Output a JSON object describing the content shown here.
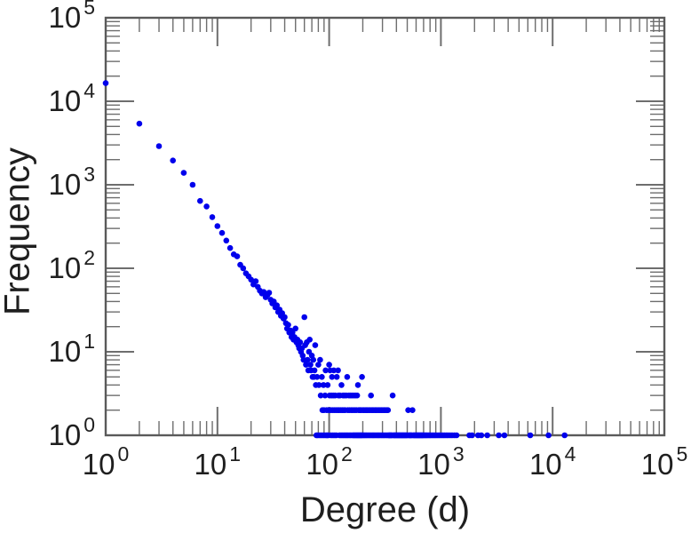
{
  "figure": {
    "background": "#ffffff"
  },
  "chart_data": {
    "type": "scatter",
    "title": "",
    "xlabel": "Degree (d)",
    "ylabel": "Frequency",
    "x_scale": "log",
    "y_scale": "log",
    "xlim": [
      1,
      100000
    ],
    "ylim": [
      1,
      100000
    ],
    "grid": false,
    "legend": null,
    "frame": "box-with-inward-ticks-all-sides",
    "x_ticks": [
      {
        "value": 1,
        "base": "10",
        "exp": "0"
      },
      {
        "value": 10,
        "base": "10",
        "exp": "1"
      },
      {
        "value": 100,
        "base": "10",
        "exp": "2"
      },
      {
        "value": 1000,
        "base": "10",
        "exp": "3"
      },
      {
        "value": 10000,
        "base": "10",
        "exp": "4"
      },
      {
        "value": 100000,
        "base": "10",
        "exp": "5"
      }
    ],
    "y_ticks": [
      {
        "value": 1,
        "base": "10",
        "exp": "0"
      },
      {
        "value": 10,
        "base": "10",
        "exp": "1"
      },
      {
        "value": 100,
        "base": "10",
        "exp": "2"
      },
      {
        "value": 1000,
        "base": "10",
        "exp": "3"
      },
      {
        "value": 10000,
        "base": "10",
        "exp": "4"
      },
      {
        "value": 100000,
        "base": "10",
        "exp": "5"
      }
    ],
    "marker": {
      "shape": "circle",
      "radius_px": 3.3,
      "color": "#0000ec"
    },
    "axis_color": "#5a5a5a",
    "tick_color": "#6e6e6e",
    "text_color": "#1f1f1f",
    "points": [
      [
        1,
        16500
      ],
      [
        2,
        5400
      ],
      [
        3,
        2900
      ],
      [
        4,
        1950
      ],
      [
        5,
        1390
      ],
      [
        6,
        1000
      ],
      [
        7,
        640
      ],
      [
        8,
        550
      ],
      [
        9,
        410
      ],
      [
        10,
        320
      ],
      [
        11,
        265
      ],
      [
        12,
        215
      ],
      [
        13,
        175
      ],
      [
        14,
        147
      ],
      [
        15,
        139
      ],
      [
        16,
        110
      ],
      [
        17,
        100
      ],
      [
        18,
        87
      ],
      [
        19,
        80
      ],
      [
        20,
        73
      ],
      [
        21,
        64
      ],
      [
        22,
        70
      ],
      [
        23,
        60
      ],
      [
        24,
        54
      ],
      [
        25,
        50
      ],
      [
        26,
        52
      ],
      [
        27,
        45
      ],
      [
        28,
        48
      ],
      [
        29,
        51
      ],
      [
        30,
        42
      ],
      [
        31,
        38
      ],
      [
        32,
        40
      ],
      [
        33,
        34
      ],
      [
        34,
        36
      ],
      [
        35,
        30
      ],
      [
        36,
        32
      ],
      [
        37,
        27
      ],
      [
        38,
        29
      ],
      [
        39,
        25
      ],
      [
        40,
        26
      ],
      [
        41,
        22
      ],
      [
        42,
        19
      ],
      [
        43,
        21
      ],
      [
        44,
        17
      ],
      [
        45,
        18
      ],
      [
        46,
        15
      ],
      [
        47,
        17
      ],
      [
        48,
        14
      ],
      [
        49,
        15
      ],
      [
        50,
        19
      ],
      [
        51,
        13
      ],
      [
        52,
        14
      ],
      [
        53,
        12
      ],
      [
        54,
        11
      ],
      [
        55,
        13
      ],
      [
        56,
        10
      ],
      [
        57,
        11
      ],
      [
        58,
        9
      ],
      [
        59,
        8
      ],
      [
        60,
        26
      ],
      [
        61,
        12
      ],
      [
        62,
        7
      ],
      [
        63,
        13
      ],
      [
        64,
        8
      ],
      [
        65,
        6
      ],
      [
        66,
        10
      ],
      [
        67,
        14
      ],
      [
        68,
        7
      ],
      [
        69,
        6
      ],
      [
        70,
        9
      ],
      [
        71,
        5
      ],
      [
        72,
        8
      ],
      [
        73,
        5
      ],
      [
        74,
        6
      ],
      [
        75,
        12
      ],
      [
        76,
        4
      ],
      [
        77,
        1
      ],
      [
        78,
        5
      ],
      [
        79,
        1
      ],
      [
        80,
        7
      ],
      [
        81,
        4
      ],
      [
        82,
        1
      ],
      [
        83,
        8
      ],
      [
        84,
        3
      ],
      [
        85,
        1
      ],
      [
        86,
        5
      ],
      [
        87,
        2
      ],
      [
        88,
        1
      ],
      [
        89,
        4
      ],
      [
        90,
        2
      ],
      [
        91,
        1
      ],
      [
        92,
        3
      ],
      [
        93,
        6
      ],
      [
        94,
        1
      ],
      [
        95,
        2
      ],
      [
        96,
        1
      ],
      [
        97,
        4
      ],
      [
        98,
        1
      ],
      [
        99,
        2
      ],
      [
        100,
        7
      ],
      [
        101,
        3
      ],
      [
        102,
        6
      ],
      [
        103,
        2
      ],
      [
        104,
        1
      ],
      [
        105,
        3
      ],
      [
        106,
        5
      ],
      [
        107,
        2
      ],
      [
        108,
        1
      ],
      [
        109,
        3
      ],
      [
        110,
        6
      ],
      [
        111,
        2
      ],
      [
        112,
        1
      ],
      [
        113,
        3
      ],
      [
        115,
        2
      ],
      [
        116,
        1
      ],
      [
        117,
        5
      ],
      [
        119,
        2
      ],
      [
        120,
        6
      ],
      [
        121,
        3
      ],
      [
        123,
        2
      ],
      [
        124,
        1
      ],
      [
        125,
        3
      ],
      [
        127,
        2
      ],
      [
        128,
        1
      ],
      [
        129,
        4
      ],
      [
        131,
        2
      ],
      [
        132,
        1
      ],
      [
        133,
        3
      ],
      [
        135,
        2
      ],
      [
        136,
        1
      ],
      [
        137,
        3
      ],
      [
        139,
        2
      ],
      [
        140,
        1
      ],
      [
        142,
        3
      ],
      [
        144,
        1
      ],
      [
        145,
        5
      ],
      [
        147,
        2
      ],
      [
        148,
        1
      ],
      [
        150,
        3
      ],
      [
        152,
        2
      ],
      [
        153,
        1
      ],
      [
        155,
        3
      ],
      [
        157,
        1
      ],
      [
        158,
        2
      ],
      [
        160,
        3
      ],
      [
        162,
        1
      ],
      [
        163,
        2
      ],
      [
        165,
        1
      ],
      [
        166,
        3
      ],
      [
        168,
        1
      ],
      [
        169,
        2
      ],
      [
        171,
        1
      ],
      [
        172,
        3
      ],
      [
        174,
        1
      ],
      [
        175,
        2
      ],
      [
        177,
        1
      ],
      [
        178,
        3
      ],
      [
        180,
        1
      ],
      [
        181,
        4
      ],
      [
        183,
        1
      ],
      [
        184,
        2
      ],
      [
        186,
        1
      ],
      [
        187,
        2
      ],
      [
        189,
        1
      ],
      [
        190,
        2
      ],
      [
        192,
        1
      ],
      [
        193,
        2
      ],
      [
        195,
        1
      ],
      [
        197,
        5
      ],
      [
        198,
        1
      ],
      [
        200,
        2
      ],
      [
        203,
        1
      ],
      [
        205,
        2
      ],
      [
        207,
        1
      ],
      [
        210,
        2
      ],
      [
        212,
        1
      ],
      [
        215,
        2
      ],
      [
        217,
        1
      ],
      [
        220,
        2
      ],
      [
        223,
        1
      ],
      [
        226,
        2
      ],
      [
        229,
        1
      ],
      [
        232,
        2
      ],
      [
        235,
        1
      ],
      [
        237,
        3
      ],
      [
        239,
        2
      ],
      [
        242,
        1
      ],
      [
        245,
        2
      ],
      [
        248,
        1
      ],
      [
        251,
        2
      ],
      [
        254,
        1
      ],
      [
        258,
        2
      ],
      [
        261,
        1
      ],
      [
        264,
        2
      ],
      [
        268,
        1
      ],
      [
        271,
        2
      ],
      [
        275,
        1
      ],
      [
        279,
        2
      ],
      [
        282,
        1
      ],
      [
        286,
        2
      ],
      [
        290,
        1
      ],
      [
        294,
        2
      ],
      [
        298,
        1
      ],
      [
        302,
        2
      ],
      [
        306,
        1
      ],
      [
        310,
        2
      ],
      [
        314,
        1
      ],
      [
        318,
        2
      ],
      [
        323,
        1
      ],
      [
        327,
        2
      ],
      [
        332,
        1
      ],
      [
        336,
        2
      ],
      [
        341,
        1
      ],
      [
        345,
        1
      ],
      [
        350,
        1
      ],
      [
        355,
        1
      ],
      [
        360,
        1
      ],
      [
        365,
        1
      ],
      [
        370,
        3
      ],
      [
        376,
        1
      ],
      [
        381,
        1
      ],
      [
        387,
        1
      ],
      [
        392,
        1
      ],
      [
        398,
        1
      ],
      [
        404,
        1
      ],
      [
        410,
        1
      ],
      [
        416,
        1
      ],
      [
        422,
        1
      ],
      [
        428,
        1
      ],
      [
        434,
        1
      ],
      [
        441,
        1
      ],
      [
        447,
        1
      ],
      [
        454,
        1
      ],
      [
        460,
        1
      ],
      [
        467,
        1
      ],
      [
        474,
        1
      ],
      [
        481,
        1
      ],
      [
        488,
        1
      ],
      [
        495,
        1
      ],
      [
        503,
        1
      ],
      [
        510,
        2
      ],
      [
        518,
        1
      ],
      [
        525,
        1
      ],
      [
        533,
        1
      ],
      [
        541,
        1
      ],
      [
        549,
        1
      ],
      [
        557,
        2
      ],
      [
        565,
        1
      ],
      [
        574,
        1
      ],
      [
        582,
        1
      ],
      [
        591,
        1
      ],
      [
        600,
        1
      ],
      [
        609,
        1
      ],
      [
        618,
        1
      ],
      [
        627,
        1
      ],
      [
        636,
        1
      ],
      [
        645,
        1
      ],
      [
        655,
        1
      ],
      [
        665,
        1
      ],
      [
        675,
        1
      ],
      [
        685,
        1
      ],
      [
        695,
        1
      ],
      [
        710,
        1
      ],
      [
        725,
        1
      ],
      [
        740,
        1
      ],
      [
        755,
        1
      ],
      [
        775,
        1
      ],
      [
        795,
        1
      ],
      [
        815,
        1
      ],
      [
        840,
        1
      ],
      [
        865,
        1
      ],
      [
        890,
        1
      ],
      [
        915,
        1
      ],
      [
        945,
        1
      ],
      [
        975,
        1
      ],
      [
        1010,
        1
      ],
      [
        1045,
        1
      ],
      [
        1080,
        1
      ],
      [
        1120,
        1
      ],
      [
        1160,
        1
      ],
      [
        1210,
        1
      ],
      [
        1260,
        1
      ],
      [
        1320,
        1
      ],
      [
        1380,
        1
      ],
      [
        1800,
        1
      ],
      [
        1900,
        1
      ],
      [
        2150,
        1
      ],
      [
        2300,
        1
      ],
      [
        2600,
        1
      ],
      [
        3300,
        1
      ],
      [
        3700,
        1
      ],
      [
        6300,
        1
      ],
      [
        9200,
        1
      ],
      [
        12800,
        1
      ]
    ]
  }
}
